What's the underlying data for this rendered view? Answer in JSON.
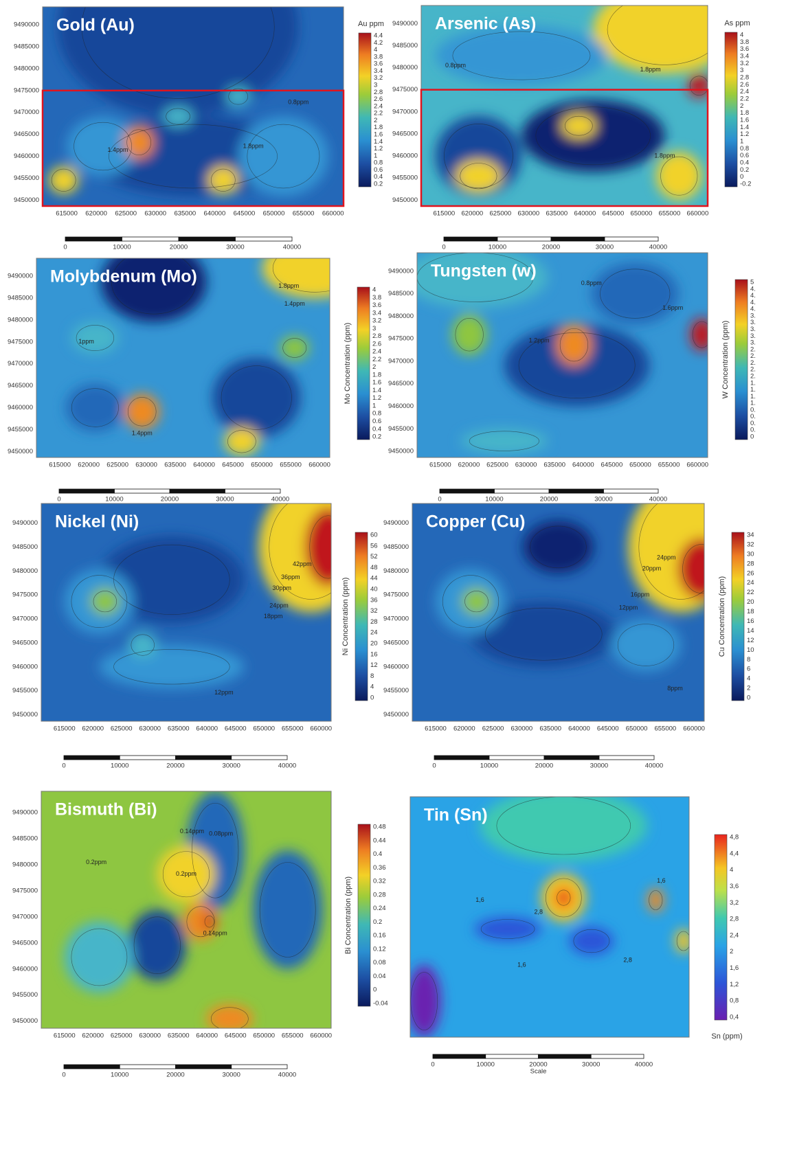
{
  "panels": [
    {
      "title": "Gold (Au)",
      "colorbar_label": "Au ppm",
      "colorbar_ticks": [
        4.4,
        4.2,
        4,
        3.8,
        3.6,
        3.4,
        3.2,
        3,
        2.8,
        2.6,
        2.4,
        2.2,
        2,
        1.8,
        1.6,
        1.4,
        1.2,
        1,
        0.8,
        0.6,
        0.4,
        0.2
      ],
      "x_ticks": [
        615000,
        620000,
        625000,
        630000,
        635000,
        640000,
        645000,
        650000,
        655000,
        660000
      ],
      "y_ticks": [
        9490000,
        9485000,
        9480000,
        9475000,
        9470000,
        9465000,
        9460000,
        9455000,
        9450000
      ],
      "scale_ticks": [
        0,
        10000,
        20000,
        30000,
        40000
      ],
      "contour_labels": [
        "1.4ppm",
        "1.8ppm",
        "0.8ppm"
      ]
    },
    {
      "title": "Arsenic (As)",
      "colorbar_label": "As ppm",
      "colorbar_ticks": [
        4,
        3.8,
        3.6,
        3.4,
        3.2,
        3,
        2.8,
        2.6,
        2.4,
        2.2,
        2,
        1.8,
        1.6,
        1.4,
        1.2,
        1,
        0.8,
        0.6,
        0.4,
        0.2,
        0,
        -0.2
      ],
      "x_ticks": [
        615000,
        620000,
        625000,
        630000,
        635000,
        640000,
        645000,
        650000,
        655000,
        660000
      ],
      "y_ticks": [
        9490000,
        9485000,
        9480000,
        9475000,
        9470000,
        9465000,
        9460000,
        9455000,
        9450000
      ],
      "scale_ticks": [
        0,
        10000,
        20000,
        30000,
        40000
      ],
      "contour_labels": [
        "0.8ppm",
        "1.8ppm",
        "1.8ppm"
      ]
    },
    {
      "title": "Molybdenum (Mo)",
      "colorbar_label": "Mo Concentration (ppm)",
      "colorbar_ticks": [
        4,
        3.8,
        3.6,
        3.4,
        3.2,
        3,
        2.8,
        2.6,
        2.4,
        2.2,
        2,
        1.8,
        1.6,
        1.4,
        1.2,
        1,
        0.8,
        0.6,
        0.4,
        0.2
      ],
      "x_ticks": [
        615000,
        620000,
        625000,
        630000,
        635000,
        640000,
        645000,
        650000,
        655000,
        660000
      ],
      "y_ticks": [
        9490000,
        9485000,
        9480000,
        9475000,
        9470000,
        9465000,
        9460000,
        9455000,
        9450000
      ],
      "scale_ticks": [
        0,
        10000,
        20000,
        30000,
        40000
      ],
      "contour_labels": [
        "1.8ppm",
        "1.4ppm",
        "1ppm",
        "1.4ppm"
      ]
    },
    {
      "title": "Tungsten (w)",
      "colorbar_label": "W Concentration (ppm)",
      "colorbar_ticks": [
        "5",
        "4.",
        "4.",
        "4.",
        "4.",
        "3.",
        "3.",
        "3.",
        "3.",
        "3.",
        "2.",
        "2.",
        "2.",
        "2.",
        "2.",
        "1.",
        "1.",
        "1.",
        "1.",
        "0.",
        "0.",
        "0.",
        "0.",
        "0"
      ],
      "x_ticks": [
        615000,
        620000,
        625000,
        630000,
        635000,
        640000,
        645000,
        650000,
        655000,
        660000
      ],
      "y_ticks": [
        9490000,
        9485000,
        9480000,
        9475000,
        9470000,
        9465000,
        9460000,
        9455000,
        9450000
      ],
      "scale_ticks": [
        0,
        10000,
        20000,
        30000,
        40000
      ],
      "contour_labels": [
        "1.2ppm",
        "1.6ppm",
        "0.8ppm"
      ]
    },
    {
      "title": "Nickel (Ni)",
      "colorbar_label": "Ni Concentration (ppm)",
      "colorbar_ticks": [
        60,
        56,
        52,
        48,
        44,
        40,
        36,
        32,
        28,
        24,
        20,
        16,
        12,
        8,
        4,
        0
      ],
      "x_ticks": [
        615000,
        620000,
        625000,
        630000,
        635000,
        640000,
        645000,
        650000,
        655000,
        660000
      ],
      "y_ticks": [
        9490000,
        9485000,
        9480000,
        9475000,
        9470000,
        9465000,
        9460000,
        9455000,
        9450000
      ],
      "scale_ticks": [
        0,
        10000,
        20000,
        30000,
        40000
      ],
      "contour_labels": [
        "42ppm",
        "36ppm",
        "30ppm",
        "24ppm",
        "18ppm",
        "12ppm"
      ]
    },
    {
      "title": "Copper (Cu)",
      "colorbar_label": "Cu Concentration (ppm)",
      "colorbar_ticks": [
        34,
        32,
        30,
        28,
        26,
        24,
        22,
        20,
        18,
        16,
        14,
        12,
        10,
        8,
        6,
        4,
        2,
        0
      ],
      "x_ticks": [
        615000,
        620000,
        625000,
        630000,
        635000,
        640000,
        645000,
        650000,
        655000,
        660000
      ],
      "y_ticks": [
        9490000,
        9485000,
        9480000,
        9475000,
        9470000,
        9465000,
        9460000,
        9455000,
        9450000
      ],
      "scale_ticks": [
        0,
        10000,
        20000,
        30000,
        40000
      ],
      "contour_labels": [
        "24ppm",
        "20ppm",
        "16ppm",
        "12ppm",
        "8ppm"
      ]
    },
    {
      "title": "Bismuth (Bi)",
      "colorbar_label": "Bi Concentration (ppm)",
      "colorbar_ticks": [
        0.48,
        0.44,
        0.4,
        0.36,
        0.32,
        0.28,
        0.24,
        0.2,
        0.16,
        0.12,
        0.08,
        0.04,
        0,
        -0.04
      ],
      "x_ticks": [
        615000,
        620000,
        625000,
        630000,
        635000,
        640000,
        645000,
        650000,
        655000,
        660000
      ],
      "y_ticks": [
        9490000,
        9485000,
        9480000,
        9475000,
        9470000,
        9465000,
        9460000,
        9455000,
        9450000
      ],
      "scale_ticks": [
        0,
        10000,
        20000,
        30000,
        40000
      ],
      "contour_labels": [
        "0.2ppm",
        "0.14ppm",
        "0.08ppm",
        "0.2ppm",
        "0.14ppm"
      ]
    },
    {
      "title": "Tin (Sn)",
      "colorbar_label": "Sn (ppm)",
      "colorbar_ticks": [
        "4,8",
        "4,4",
        "4",
        "3,6",
        "3,2",
        "2,8",
        "2,4",
        "2",
        "1,6",
        "1,2",
        "0,8",
        "0,4"
      ],
      "scale_ticks": [
        0,
        10000,
        20000,
        30000,
        40000
      ],
      "scale_label": "Scale",
      "contour_labels": [
        "1,6",
        "1,6",
        "2,8",
        "1,6",
        "2,8"
      ]
    }
  ]
}
